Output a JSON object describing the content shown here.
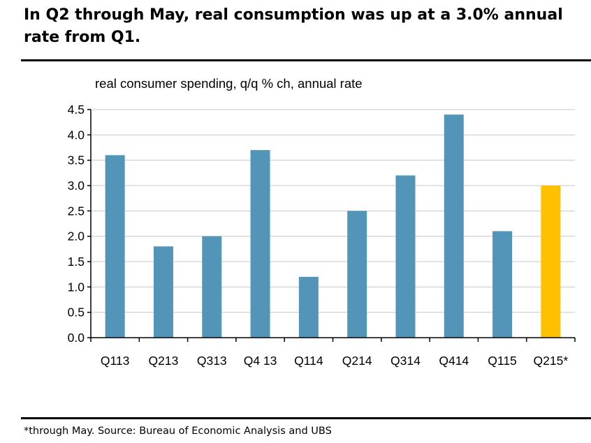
{
  "title": "In Q2 through May, real consumption was up at a 3.0% annual rate from Q1.",
  "footnote": "*through May. Source: Bureau of Economic Analysis and UBS",
  "chart_data": {
    "type": "bar",
    "ylabel": "real consumer spending, q/q % ch, annual rate",
    "categories": [
      "Q113",
      "Q213",
      "Q313",
      "Q4 13",
      "Q114",
      "Q214",
      "Q314",
      "Q414",
      "Q115",
      "Q215*"
    ],
    "values": [
      3.6,
      1.8,
      2.0,
      3.7,
      1.2,
      2.5,
      3.2,
      4.4,
      2.1,
      3.0
    ],
    "colors": [
      "#5295b9",
      "#5295b9",
      "#5295b9",
      "#5295b9",
      "#5295b9",
      "#5295b9",
      "#5295b9",
      "#5295b9",
      "#5295b9",
      "#ffc000"
    ],
    "ylim": [
      0,
      4.5
    ],
    "yticks": [
      "0.0",
      "0.5",
      "1.0",
      "1.5",
      "2.0",
      "2.5",
      "3.0",
      "3.5",
      "4.0",
      "4.5"
    ],
    "grid": true,
    "legend": "none"
  }
}
